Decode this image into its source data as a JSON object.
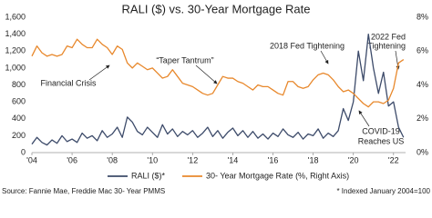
{
  "chart_data": {
    "type": "line",
    "title": "RALI ($) vs. 30-Year Mortgage Rate",
    "x": [
      2004,
      2004.25,
      2004.5,
      2004.75,
      2005,
      2005.25,
      2005.5,
      2005.75,
      2006,
      2006.25,
      2006.5,
      2006.75,
      2007,
      2007.25,
      2007.5,
      2007.75,
      2008,
      2008.25,
      2008.5,
      2008.75,
      2009,
      2009.25,
      2009.5,
      2009.75,
      2010,
      2010.25,
      2010.5,
      2010.75,
      2011,
      2011.25,
      2011.5,
      2011.75,
      2012,
      2012.25,
      2012.5,
      2012.75,
      2013,
      2013.25,
      2013.5,
      2013.75,
      2014,
      2014.25,
      2014.5,
      2014.75,
      2015,
      2015.25,
      2015.5,
      2015.75,
      2016,
      2016.25,
      2016.5,
      2016.75,
      2017,
      2017.25,
      2017.5,
      2017.75,
      2018,
      2018.25,
      2018.5,
      2018.75,
      2019,
      2019.25,
      2019.5,
      2019.75,
      2020,
      2020.25,
      2020.5,
      2020.75,
      2021,
      2021.25,
      2021.5,
      2021.75,
      2022,
      2022.25,
      2022.5
    ],
    "series": [
      {
        "name": "RALI ($)*",
        "color": "#3d4b6a",
        "axis": "y",
        "values": [
          100,
          180,
          120,
          90,
          150,
          110,
          200,
          130,
          160,
          120,
          230,
          170,
          200,
          140,
          260,
          180,
          220,
          300,
          180,
          420,
          360,
          250,
          210,
          300,
          240,
          180,
          330,
          220,
          280,
          190,
          250,
          210,
          260,
          180,
          230,
          300,
          190,
          260,
          170,
          240,
          290,
          200,
          260,
          180,
          250,
          170,
          220,
          160,
          230,
          190,
          280,
          210,
          180,
          240,
          160,
          220,
          200,
          280,
          170,
          230,
          190,
          260,
          520,
          380,
          600,
          1200,
          850,
          1400,
          1000,
          700,
          950,
          550,
          600,
          300,
          180
        ]
      },
      {
        "name": "30- Year Mortgage Rate (%, Right Axis)",
        "color": "#e8882c",
        "axis": "y2",
        "values": [
          5.7,
          6.3,
          5.9,
          5.7,
          5.8,
          5.7,
          5.8,
          6.3,
          6.2,
          6.7,
          6.4,
          6.2,
          6.2,
          6.7,
          6.4,
          6.2,
          5.8,
          6.3,
          6.1,
          5.3,
          5.0,
          5.3,
          5.1,
          4.9,
          5.0,
          4.7,
          4.4,
          4.5,
          4.9,
          4.5,
          4.1,
          4.0,
          3.9,
          3.7,
          3.5,
          3.4,
          3.5,
          4.0,
          4.5,
          4.4,
          4.4,
          4.2,
          4.1,
          3.9,
          3.7,
          4.0,
          3.9,
          3.9,
          3.7,
          3.5,
          3.4,
          4.2,
          4.2,
          3.9,
          3.8,
          3.9,
          4.3,
          4.6,
          4.7,
          4.6,
          4.3,
          3.9,
          3.6,
          3.7,
          3.5,
          3.2,
          2.9,
          2.7,
          3.0,
          3.0,
          2.9,
          3.1,
          3.8,
          5.3,
          5.5
        ]
      }
    ],
    "xlim": [
      2004,
      2022.6
    ],
    "xticks": [
      {
        "value": 2004,
        "label": "'04"
      },
      {
        "value": 2006,
        "label": "'06"
      },
      {
        "value": 2008,
        "label": "'08"
      },
      {
        "value": 2010,
        "label": "'10"
      },
      {
        "value": 2012,
        "label": "'12"
      },
      {
        "value": 2014,
        "label": "'14"
      },
      {
        "value": 2016,
        "label": "'16"
      },
      {
        "value": 2018,
        "label": "'18"
      },
      {
        "value": 2020,
        "label": "'20"
      },
      {
        "value": 2022,
        "label": "'22"
      }
    ],
    "ylim": [
      0,
      1600
    ],
    "yticks": [
      0,
      200,
      400,
      600,
      800,
      {
        "value": 1000,
        "label": "1,000"
      },
      {
        "value": 1200,
        "label": "1,200"
      },
      {
        "value": 1400,
        "label": "1,400"
      },
      {
        "value": 1600,
        "label": "1,600"
      }
    ],
    "y2lim": [
      0,
      8
    ],
    "y2ticks": [
      {
        "value": 0,
        "label": "0%"
      },
      {
        "value": 2,
        "label": "2%"
      },
      {
        "value": 4,
        "label": "4%"
      },
      {
        "value": 6,
        "label": "6%"
      },
      {
        "value": 8,
        "label": "8%"
      }
    ],
    "grid": false,
    "legend": "bottom",
    "annotations": [
      {
        "lines": [
          "Financial Crisis"
        ]
      },
      {
        "lines": [
          "“Taper Tantrum”"
        ]
      },
      {
        "lines": [
          "2018 Fed Tightening"
        ]
      },
      {
        "lines": [
          "2022 Fed",
          "Tightening"
        ]
      },
      {
        "lines": [
          "COVID-19",
          "Reaches US"
        ]
      }
    ],
    "source": "Source: Fannie Mae, Freddie Mac 30- Year PMMS",
    "footnote": "* Indexed January 2004=100"
  }
}
